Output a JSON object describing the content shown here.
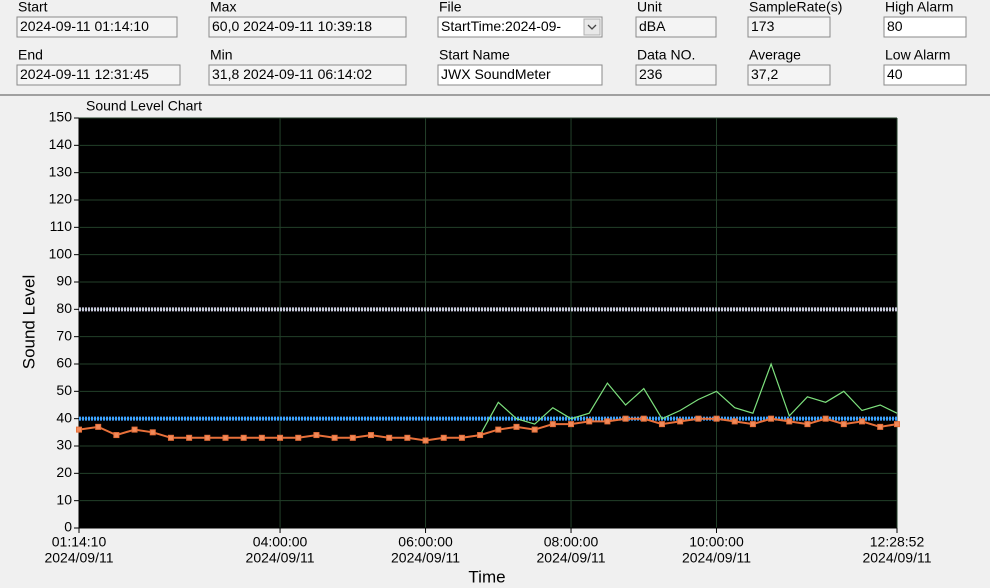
{
  "fields": [
    {
      "label": "Start",
      "value": "2024-09-11 01:14:10"
    },
    {
      "label": "End",
      "value": "2024-09-11  12:31:45"
    },
    {
      "label": "Max",
      "value": "60,0 2024-09-11  10:39:18"
    },
    {
      "label": "Min",
      "value": "31,8 2024-09-11  06:14:02"
    },
    {
      "label": "File",
      "value": "StartTime:2024-09-"
    },
    {
      "label": "Start Name",
      "value": "JWX SoundMeter"
    },
    {
      "label": "Unit",
      "value": "dBA"
    },
    {
      "label": "Data NO.",
      "value": "236"
    },
    {
      "label": "SampleRate(s)",
      "value": "173"
    },
    {
      "label": "Average",
      "value": "37,2"
    },
    {
      "label": "High Alarm",
      "value": "80"
    },
    {
      "label": "Low Alarm",
      "value": "40"
    }
  ],
  "chart_data": {
    "type": "line",
    "title": "Sound Level Chart",
    "x_label": "Time",
    "y_label": "Sound Level",
    "annotation": "A",
    "xlim": [
      "01:14:10",
      "12:28:52"
    ],
    "xticks": [
      {
        "value": "01:14:10",
        "date": "2024/09/11"
      },
      {
        "value": "04:00:00",
        "date": "2024/09/11"
      },
      {
        "value": "06:00:00",
        "date": "2024/09/11"
      },
      {
        "value": "08:00:00",
        "date": "2024/09/11"
      },
      {
        "value": "10:00:00",
        "date": "2024/09/11"
      },
      {
        "value": "12:28:52",
        "date": "2024/09/11"
      }
    ],
    "ylim": [
      0,
      150
    ],
    "yticks": [
      0,
      10,
      20,
      30,
      40,
      50,
      60,
      70,
      80,
      90,
      100,
      110,
      120,
      130,
      140,
      150
    ],
    "grid": true,
    "alarm_lines": [
      {
        "value": 80,
        "color": "#c8c8dc"
      },
      {
        "value": 40,
        "color": "#3da0ff"
      }
    ],
    "x": [
      "01:14:10",
      "01:30:00",
      "01:45:00",
      "02:00:00",
      "02:15:00",
      "02:30:00",
      "02:45:00",
      "03:00:00",
      "03:15:00",
      "03:30:00",
      "03:45:00",
      "04:00:00",
      "04:15:00",
      "04:30:00",
      "04:45:00",
      "05:00:00",
      "05:15:00",
      "05:30:00",
      "05:45:00",
      "06:00:00",
      "06:15:00",
      "06:30:00",
      "06:45:00",
      "07:00:00",
      "07:15:00",
      "07:30:00",
      "07:45:00",
      "08:00:00",
      "08:15:00",
      "08:30:00",
      "08:45:00",
      "09:00:00",
      "09:15:00",
      "09:30:00",
      "09:45:00",
      "10:00:00",
      "10:15:00",
      "10:30:00",
      "10:45:00",
      "11:00:00",
      "11:15:00",
      "11:30:00",
      "11:45:00",
      "12:00:00",
      "12:15:00",
      "12:28:52"
    ],
    "series": [
      {
        "color": "#7de07d",
        "markers": false,
        "values": [
          36,
          37,
          34,
          36,
          35,
          33,
          33,
          33,
          33,
          33,
          33,
          33,
          33,
          34,
          33,
          33,
          34,
          33,
          33,
          32,
          33,
          33,
          34,
          46,
          40,
          38,
          44,
          40,
          42,
          53,
          45,
          51,
          40,
          43,
          47,
          50,
          44,
          42,
          60,
          41,
          48,
          46,
          50,
          43,
          45,
          42
        ]
      },
      {
        "color": "#e8703a",
        "markers": true,
        "values": [
          36,
          37,
          34,
          36,
          35,
          33,
          33,
          33,
          33,
          33,
          33,
          33,
          33,
          34,
          33,
          33,
          34,
          33,
          33,
          32,
          33,
          33,
          34,
          36,
          37,
          36,
          38,
          38,
          39,
          39,
          40,
          40,
          38,
          39,
          40,
          40,
          39,
          38,
          40,
          39,
          38,
          40,
          38,
          39,
          37,
          38
        ]
      }
    ]
  }
}
